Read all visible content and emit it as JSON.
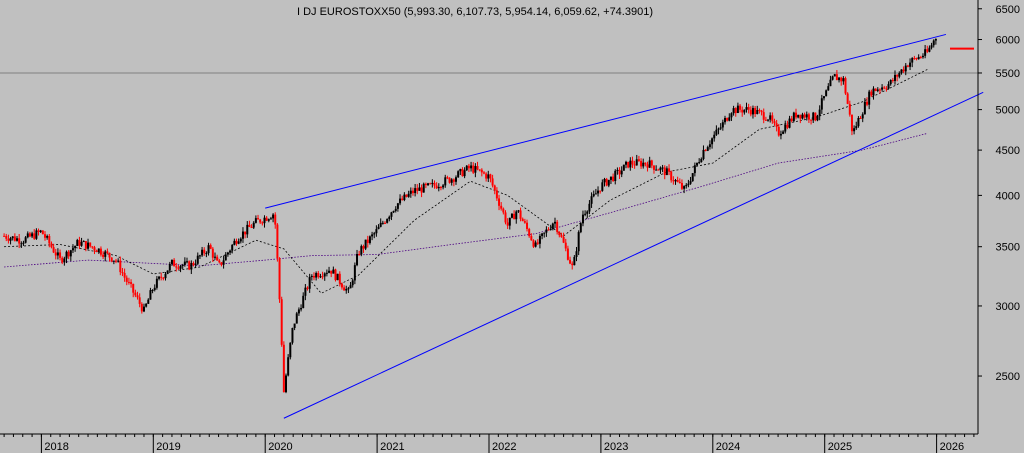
{
  "chart_data": {
    "type": "candlestick",
    "title": "I DJ EUROSTOXX50 (5,993.30, 6,107.73, 5,954.14, 6,059.62, +74.3901)",
    "y_scale": "log",
    "ylim": [
      2150,
      6650
    ],
    "y_ticks": [
      2500,
      3000,
      3500,
      4000,
      4500,
      5000,
      5500,
      6000,
      6500
    ],
    "x_ticks": [
      "2018",
      "2019",
      "2020",
      "2021",
      "2022",
      "2023",
      "2024",
      "2025",
      "2026"
    ],
    "grid": false,
    "colors": {
      "background": "#c0c0c0",
      "up_candle": "#000000",
      "down_candle": "#ff0000",
      "trendlines": "#0000ff",
      "ma_short": "#000000",
      "ma_long": "#4b0082",
      "reference_line": "#808080",
      "marker": "#ff0000"
    },
    "reference_line": 5500,
    "last_price_marker": 5860,
    "series": [
      {
        "type": "price",
        "points": [
          [
            "2017-09",
            3600
          ],
          [
            "2017-11",
            3560
          ],
          [
            "2018-01",
            3640
          ],
          [
            "2018-03",
            3380
          ],
          [
            "2018-05",
            3540
          ],
          [
            "2018-07",
            3480
          ],
          [
            "2018-09",
            3380
          ],
          [
            "2018-10",
            3220
          ],
          [
            "2018-12",
            2960
          ],
          [
            "2019-01",
            3150
          ],
          [
            "2019-03",
            3350
          ],
          [
            "2019-05",
            3330
          ],
          [
            "2019-07",
            3500
          ],
          [
            "2019-08",
            3320
          ],
          [
            "2019-10",
            3580
          ],
          [
            "2019-12",
            3730
          ],
          [
            "2020-02",
            3820
          ],
          [
            "2020-03",
            2400
          ],
          [
            "2020-04",
            2850
          ],
          [
            "2020-06",
            3250
          ],
          [
            "2020-08",
            3300
          ],
          [
            "2020-10",
            3100
          ],
          [
            "2020-11",
            3450
          ],
          [
            "2021-01",
            3650
          ],
          [
            "2021-03",
            3900
          ],
          [
            "2021-05",
            4050
          ],
          [
            "2021-07",
            4100
          ],
          [
            "2021-09",
            4180
          ],
          [
            "2021-11",
            4300
          ],
          [
            "2022-01",
            4200
          ],
          [
            "2022-03",
            3700
          ],
          [
            "2022-04",
            3850
          ],
          [
            "2022-06",
            3500
          ],
          [
            "2022-08",
            3750
          ],
          [
            "2022-10",
            3300
          ],
          [
            "2022-11",
            3800
          ],
          [
            "2023-01",
            4100
          ],
          [
            "2023-03",
            4250
          ],
          [
            "2023-04",
            4350
          ],
          [
            "2023-06",
            4350
          ],
          [
            "2023-08",
            4250
          ],
          [
            "2023-10",
            4050
          ],
          [
            "2023-12",
            4500
          ],
          [
            "2024-02",
            4800
          ],
          [
            "2024-03",
            5000
          ],
          [
            "2024-05",
            5000
          ],
          [
            "2024-07",
            4900
          ],
          [
            "2024-08",
            4700
          ],
          [
            "2024-10",
            4950
          ],
          [
            "2024-12",
            4900
          ],
          [
            "2025-02",
            5450
          ],
          [
            "2025-03",
            5400
          ],
          [
            "2025-04",
            4700
          ],
          [
            "2025-06",
            5250
          ],
          [
            "2025-08",
            5350
          ],
          [
            "2025-10",
            5650
          ],
          [
            "2025-12",
            5800
          ],
          [
            "2026-01",
            6060
          ]
        ]
      },
      {
        "type": "moving_average_short",
        "points": [
          [
            "2017-09",
            3500
          ],
          [
            "2018-03",
            3520
          ],
          [
            "2018-09",
            3420
          ],
          [
            "2019-01",
            3260
          ],
          [
            "2019-06",
            3320
          ],
          [
            "2019-12",
            3560
          ],
          [
            "2020-03",
            3480
          ],
          [
            "2020-07",
            3100
          ],
          [
            "2020-11",
            3250
          ],
          [
            "2021-05",
            3750
          ],
          [
            "2021-11",
            4150
          ],
          [
            "2022-03",
            4000
          ],
          [
            "2022-09",
            3600
          ],
          [
            "2023-02",
            3950
          ],
          [
            "2023-08",
            4250
          ],
          [
            "2024-01",
            4350
          ],
          [
            "2024-06",
            4750
          ],
          [
            "2024-12",
            4900
          ],
          [
            "2025-05",
            5100
          ],
          [
            "2025-12",
            5550
          ]
        ]
      },
      {
        "type": "moving_average_long",
        "points": [
          [
            "2017-09",
            3320
          ],
          [
            "2018-06",
            3380
          ],
          [
            "2019-06",
            3330
          ],
          [
            "2020-01",
            3380
          ],
          [
            "2020-06",
            3420
          ],
          [
            "2021-01",
            3430
          ],
          [
            "2021-09",
            3520
          ],
          [
            "2022-06",
            3620
          ],
          [
            "2023-03",
            3850
          ],
          [
            "2023-12",
            4100
          ],
          [
            "2024-08",
            4350
          ],
          [
            "2025-05",
            4500
          ],
          [
            "2025-12",
            4700
          ]
        ]
      },
      {
        "type": "trendline_upper",
        "points": [
          [
            "2020-01",
            3870
          ],
          [
            "2026-02",
            6080
          ]
        ]
      },
      {
        "type": "trendline_lower",
        "points": [
          [
            "2020-03",
            2240
          ],
          [
            "2026-06",
            5230
          ]
        ]
      }
    ]
  }
}
